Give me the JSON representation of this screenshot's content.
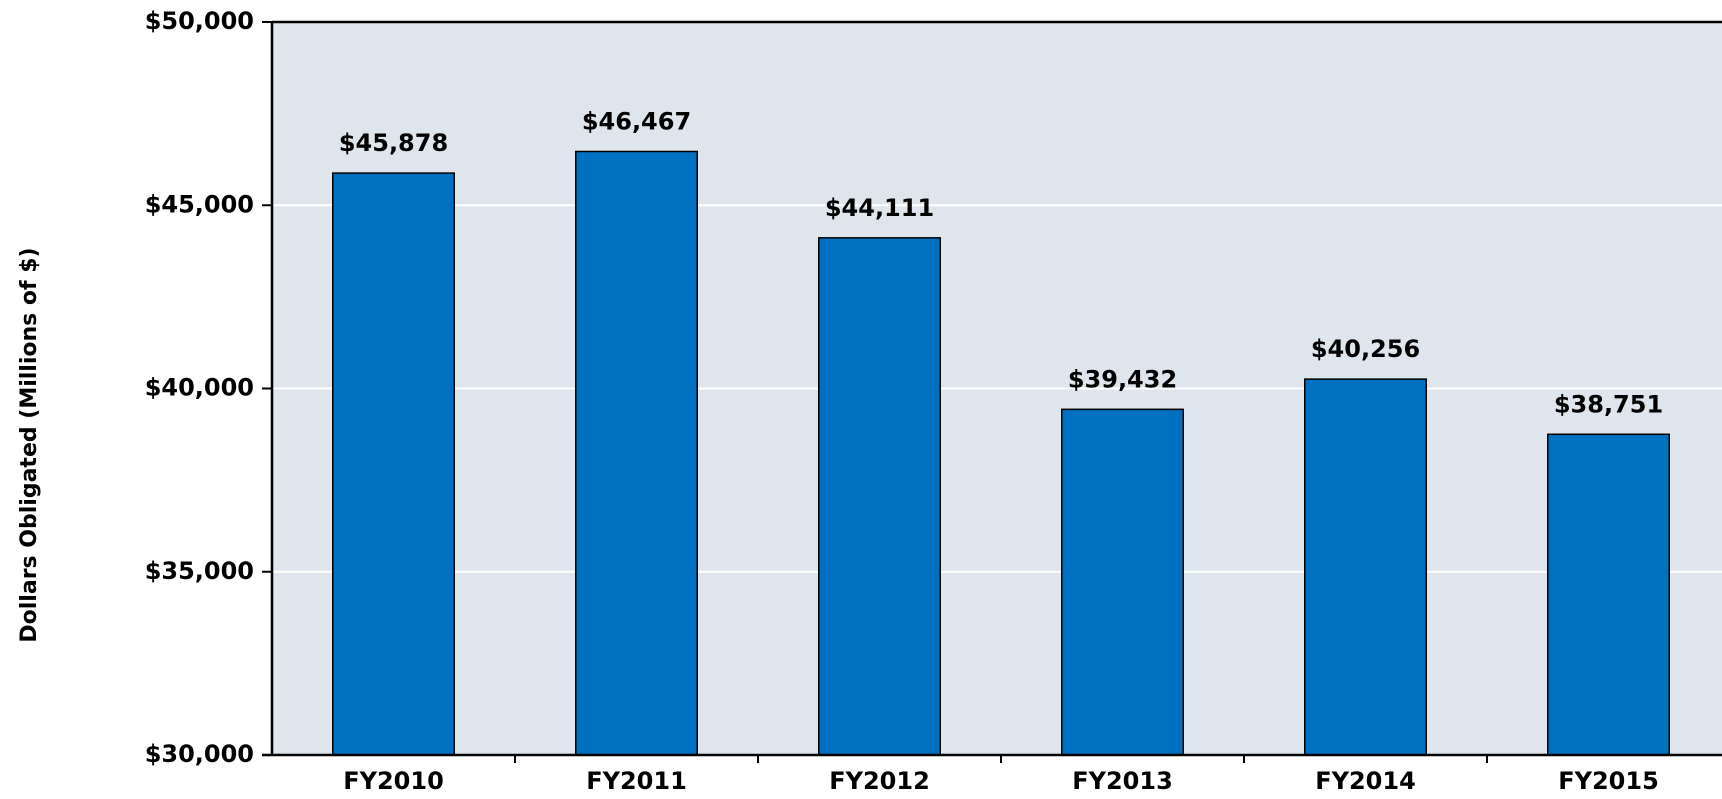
{
  "chart_data": {
    "type": "bar",
    "y_axis_label": "Dollars Obligated (Millions of $)",
    "categories": [
      "FY2010",
      "FY2011",
      "FY2012",
      "FY2013",
      "FY2014",
      "FY2015"
    ],
    "values": [
      45878,
      46467,
      44111,
      39432,
      40256,
      38751
    ],
    "value_labels": [
      "$45,878",
      "$46,467",
      "$44,111",
      "$39,432",
      "$40,256",
      "$38,751"
    ],
    "color": "#0070c0",
    "ylim": [
      30000,
      50000
    ],
    "yticks": [
      {
        "value": 30000,
        "label": "$30,000"
      },
      {
        "value": 35000,
        "label": "$35,000"
      },
      {
        "value": 40000,
        "label": "$40,000"
      },
      {
        "value": 45000,
        "label": "$45,000"
      },
      {
        "value": 50000,
        "label": "$50,000"
      }
    ],
    "grid": true
  }
}
